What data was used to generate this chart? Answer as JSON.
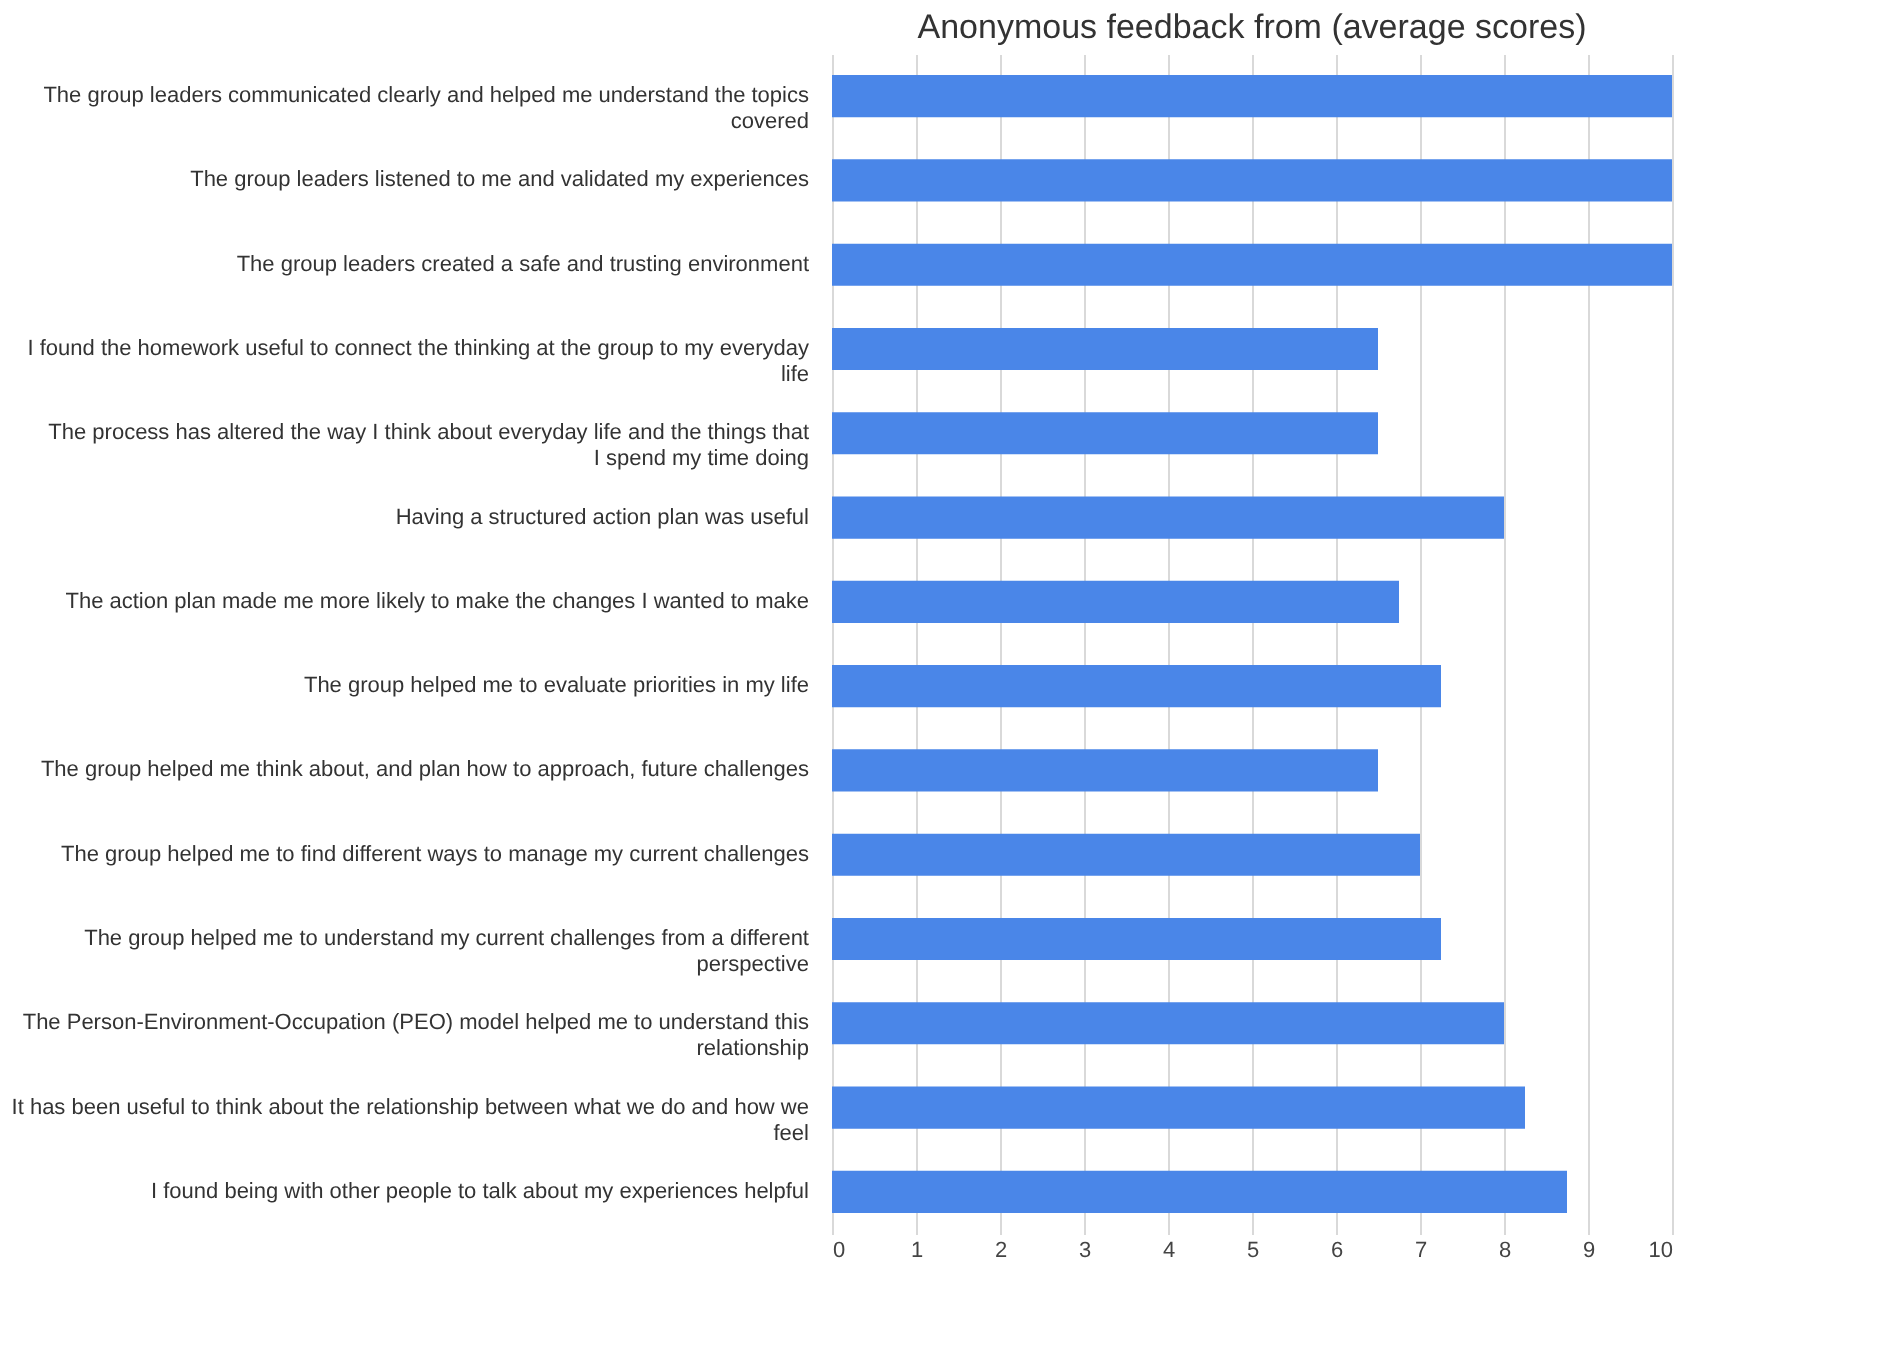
{
  "chart_data": {
    "type": "bar",
    "orientation": "horizontal",
    "title": "Anonymous feedback from (average scores)",
    "categories": [
      "The group leaders communicated clearly and helped me understand the topics covered",
      "The group leaders listened to me and validated my experiences",
      "The group leaders created a safe and trusting environment",
      "I found the homework useful to connect the thinking at the group to my everyday life",
      "The process has altered the way I think about everyday life and the things that I spend my time doing",
      "Having a structured action plan was useful",
      "The action plan made me more likely to make the changes I wanted to make",
      "The group helped me to evaluate priorities in my life",
      "The group helped me think about, and plan how to approach, future challenges",
      "The group helped me to find different ways to manage my current challenges",
      "The group helped me to understand my current challenges from a different perspective",
      "The Person-Environment-Occupation (PEO) model helped me to understand this relationship",
      "It has been useful to think about the relationship between what we do and how we feel",
      "I found being with other people to talk about my experiences helpful"
    ],
    "values": [
      10,
      10,
      10,
      6.5,
      6.5,
      8,
      6.75,
      7.25,
      6.5,
      7,
      7.25,
      8,
      8.25,
      8.75
    ],
    "color": "#4a86e8",
    "xlim": [
      0,
      10
    ],
    "xticks": [
      0,
      1,
      2,
      3,
      4,
      5,
      6,
      7,
      8,
      9,
      10
    ],
    "grid": "x"
  }
}
